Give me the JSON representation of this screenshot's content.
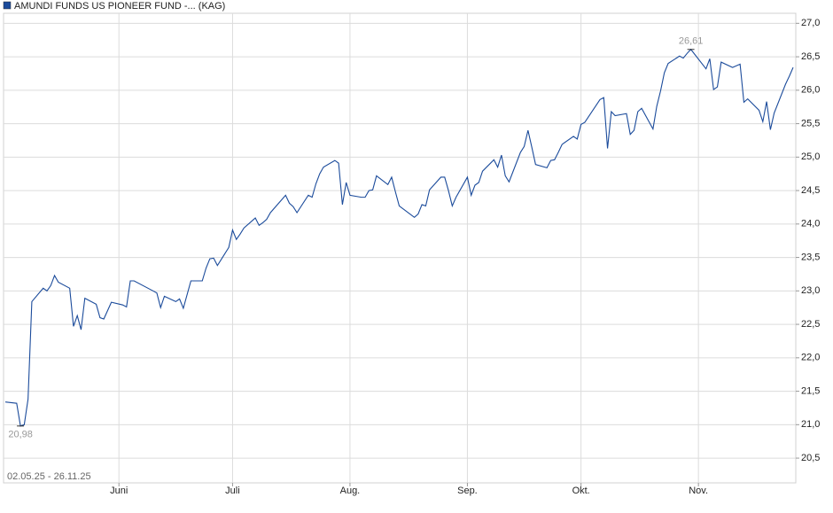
{
  "chart_data": {
    "type": "line",
    "title": "AMUNDI FUNDS US PIONEER FUND -... (KAG)",
    "range_label": "02.05.25 - 26.11.25",
    "max_label": "26,61",
    "min_label": "20,98",
    "xlim": [
      "02.05.25",
      "26.11.25"
    ],
    "xticks": [
      {
        "value": "01.06.25",
        "label": "Juni"
      },
      {
        "value": "01.07.25",
        "label": "Juli"
      },
      {
        "value": "01.08.25",
        "label": "Aug."
      },
      {
        "value": "01.09.25",
        "label": "Sep."
      },
      {
        "value": "01.10.25",
        "label": "Okt."
      },
      {
        "value": "01.11.25",
        "label": "Nov."
      }
    ],
    "ylim": [
      20.13,
      27.15
    ],
    "yticks": [
      {
        "value": 20.5,
        "label": "20,5"
      },
      {
        "value": 21.0,
        "label": "21,0"
      },
      {
        "value": 21.5,
        "label": "21,5"
      },
      {
        "value": 22.0,
        "label": "22,0"
      },
      {
        "value": 22.5,
        "label": "22,5"
      },
      {
        "value": 23.0,
        "label": "23,0"
      },
      {
        "value": 23.5,
        "label": "23,5"
      },
      {
        "value": 24.0,
        "label": "24,0"
      },
      {
        "value": 24.5,
        "label": "24,5"
      },
      {
        "value": 25.0,
        "label": "25,0"
      },
      {
        "value": 25.5,
        "label": "25,5"
      },
      {
        "value": 26.0,
        "label": "26,0"
      },
      {
        "value": 26.5,
        "label": "26,5"
      },
      {
        "value": 27.0,
        "label": "27,0"
      }
    ],
    "grid": true,
    "x": [
      "02.05.25",
      "05.05.25",
      "06.05.25",
      "07.05.25",
      "08.05.25",
      "09.05.25",
      "12.05.25",
      "13.05.25",
      "14.05.25",
      "15.05.25",
      "16.05.25",
      "19.05.25",
      "20.05.25",
      "21.05.25",
      "22.05.25",
      "23.05.25",
      "26.05.25",
      "27.05.25",
      "28.05.25",
      "30.05.25",
      "02.06.25",
      "03.06.25",
      "04.06.25",
      "05.06.25",
      "10.06.25",
      "11.06.25",
      "12.06.25",
      "13.06.25",
      "16.06.25",
      "17.06.25",
      "18.06.25",
      "20.06.25",
      "23.06.25",
      "24.06.25",
      "25.06.25",
      "26.06.25",
      "27.06.25",
      "30.06.25",
      "01.07.25",
      "02.07.25",
      "03.07.25",
      "04.07.25",
      "07.07.25",
      "08.07.25",
      "09.07.25",
      "10.07.25",
      "11.07.25",
      "15.07.25",
      "16.07.25",
      "17.07.25",
      "18.07.25",
      "21.07.25",
      "22.07.25",
      "23.07.25",
      "24.07.25",
      "25.07.25",
      "28.07.25",
      "29.07.25",
      "30.07.25",
      "31.07.25",
      "01.08.25",
      "04.08.25",
      "05.08.25",
      "06.08.25",
      "07.08.25",
      "08.08.25",
      "11.08.25",
      "12.08.25",
      "13.08.25",
      "14.08.25",
      "18.08.25",
      "19.08.25",
      "20.08.25",
      "21.08.25",
      "22.08.25",
      "25.08.25",
      "26.08.25",
      "27.08.25",
      "28.08.25",
      "29.08.25",
      "01.09.25",
      "02.09.25",
      "03.09.25",
      "04.09.25",
      "05.09.25",
      "08.09.25",
      "09.09.25",
      "10.09.25",
      "11.09.25",
      "12.09.25",
      "15.09.25",
      "16.09.25",
      "17.09.25",
      "18.09.25",
      "19.09.25",
      "22.09.25",
      "23.09.25",
      "24.09.25",
      "25.09.25",
      "26.09.25",
      "29.09.25",
      "30.09.25",
      "01.10.25",
      "02.10.25",
      "06.10.25",
      "07.10.25",
      "08.10.25",
      "09.10.25",
      "10.10.25",
      "13.10.25",
      "14.10.25",
      "15.10.25",
      "16.10.25",
      "17.10.25",
      "20.10.25",
      "21.10.25",
      "22.10.25",
      "23.10.25",
      "24.10.25",
      "27.10.25",
      "28.10.25",
      "29.10.25",
      "30.10.25",
      "03.11.25",
      "04.11.25",
      "05.11.25",
      "06.11.25",
      "07.11.25",
      "10.11.25",
      "12.11.25",
      "13.11.25",
      "14.11.25",
      "17.11.25",
      "18.11.25",
      "19.11.25",
      "20.11.25",
      "21.11.25",
      "24.11.25",
      "25.11.25",
      "26.11.25"
    ],
    "series": [
      {
        "name": "AMUNDI FUNDS US PIONEER FUND -... (KAG)",
        "color": "#1b4b9b",
        "values": [
          21.34,
          21.32,
          20.98,
          21.0,
          21.38,
          22.84,
          23.04,
          23.0,
          23.08,
          23.23,
          23.13,
          23.04,
          22.47,
          22.63,
          22.42,
          22.89,
          22.8,
          22.6,
          22.58,
          22.83,
          22.79,
          22.76,
          23.15,
          23.15,
          23.0,
          22.97,
          22.75,
          22.92,
          22.84,
          22.88,
          22.74,
          23.15,
          23.15,
          23.34,
          23.48,
          23.49,
          23.38,
          23.65,
          23.91,
          23.77,
          23.85,
          23.94,
          24.09,
          23.98,
          24.02,
          24.07,
          24.17,
          24.43,
          24.31,
          24.26,
          24.17,
          24.43,
          24.4,
          24.6,
          24.75,
          24.85,
          24.95,
          24.91,
          24.29,
          24.62,
          24.43,
          24.4,
          24.4,
          24.5,
          24.51,
          24.72,
          24.59,
          24.7,
          24.48,
          24.27,
          24.1,
          24.15,
          24.29,
          24.27,
          24.51,
          24.7,
          24.7,
          24.5,
          24.27,
          24.4,
          24.7,
          24.43,
          24.58,
          24.62,
          24.79,
          24.96,
          24.85,
          25.03,
          24.72,
          24.63,
          25.07,
          25.16,
          25.4,
          25.15,
          24.89,
          24.84,
          24.95,
          24.96,
          25.07,
          25.19,
          25.31,
          25.27,
          25.49,
          25.52,
          25.86,
          25.89,
          25.13,
          25.68,
          25.62,
          25.65,
          25.34,
          25.4,
          25.68,
          25.73,
          25.42,
          25.76,
          25.99,
          26.26,
          26.4,
          26.51,
          26.48,
          26.55,
          26.61,
          26.32,
          26.47,
          26.01,
          26.05,
          26.42,
          26.34,
          26.39,
          25.82,
          25.87,
          25.7,
          25.53,
          25.83,
          25.41,
          25.66,
          26.09,
          26.21,
          26.34
        ]
      }
    ]
  }
}
